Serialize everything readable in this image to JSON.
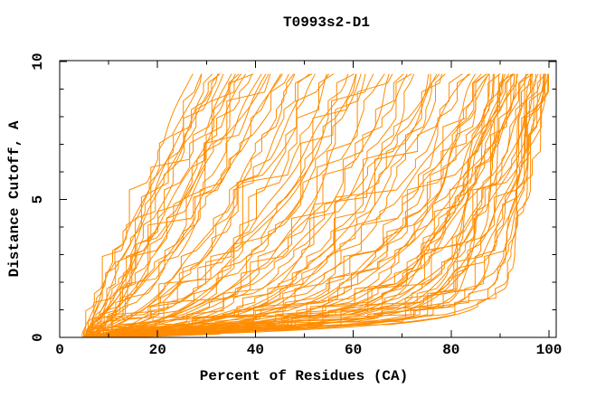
{
  "page": {
    "background": "#ffffff"
  },
  "chart_data": {
    "type": "line",
    "title": "T0993s2-D1",
    "xlabel": "Percent of Residues (CA)",
    "ylabel": "Distance Cutoff, A",
    "xlim": [
      0,
      101.5
    ],
    "ylim": [
      0,
      10
    ],
    "x_major_ticks": [
      0,
      20,
      40,
      60,
      80,
      100
    ],
    "x_minor_ticks": [
      10,
      30,
      50,
      70,
      90
    ],
    "y_major_ticks": [
      0,
      5,
      10
    ],
    "y_minor_ticks": [
      1,
      2,
      3,
      4,
      6,
      7,
      8,
      9
    ],
    "grid": false,
    "legend": "none",
    "frame": "box-with-mirrored-inward-ticks",
    "series_color": "#ff8c00",
    "axis_color": "#000000",
    "n_curves": 96,
    "curve_ymax": 9.55,
    "curve_params_format": [
      "percent_at_cutoff_0",
      "percent_at_top_cutoff",
      "shape_exponent",
      "seed"
    ],
    "curves": [
      [
        7.5,
        86.5,
        0.3,
        11
      ],
      [
        8.2,
        87.2,
        0.26,
        12
      ],
      [
        6.8,
        87.8,
        0.22,
        13
      ],
      [
        9.0,
        88.3,
        0.18,
        14
      ],
      [
        7.2,
        88.8,
        0.28,
        15
      ],
      [
        8.6,
        89.3,
        0.15,
        16
      ],
      [
        6.4,
        89.8,
        0.24,
        17
      ],
      [
        9.4,
        90.2,
        0.12,
        18
      ],
      [
        7.8,
        90.6,
        0.2,
        19
      ],
      [
        8.9,
        91.0,
        0.16,
        20
      ],
      [
        6.9,
        91.4,
        0.26,
        21
      ],
      [
        9.8,
        91.8,
        0.11,
        22
      ],
      [
        7.4,
        92.2,
        0.22,
        23
      ],
      [
        8.4,
        92.6,
        0.14,
        24
      ],
      [
        6.6,
        93.0,
        0.19,
        25
      ],
      [
        10.2,
        93.4,
        0.1,
        26
      ],
      [
        7.9,
        93.8,
        0.24,
        27
      ],
      [
        8.8,
        94.2,
        0.13,
        28
      ],
      [
        7.1,
        94.6,
        0.17,
        29
      ],
      [
        9.6,
        95.0,
        0.09,
        30
      ],
      [
        8.0,
        95.4,
        0.21,
        31
      ],
      [
        7.6,
        95.8,
        0.12,
        32
      ],
      [
        8.3,
        96.2,
        0.16,
        33
      ],
      [
        6.7,
        96.6,
        0.1,
        34
      ],
      [
        9.2,
        97.0,
        0.14,
        35
      ],
      [
        7.3,
        97.4,
        0.08,
        36
      ],
      [
        8.7,
        97.8,
        0.18,
        37
      ],
      [
        7.7,
        98.2,
        0.11,
        38
      ],
      [
        9.1,
        98.6,
        0.08,
        39
      ],
      [
        8.1,
        99.0,
        0.13,
        40
      ],
      [
        7.0,
        99.3,
        0.09,
        41
      ],
      [
        8.5,
        99.6,
        0.15,
        42
      ],
      [
        7.5,
        99.8,
        0.07,
        43
      ],
      [
        9.3,
        100.0,
        0.11,
        44
      ],
      [
        8.0,
        100.0,
        0.08,
        45
      ],
      [
        6.5,
        99.5,
        0.19,
        46
      ],
      [
        10.5,
        98.9,
        0.07,
        47
      ],
      [
        7.2,
        96.9,
        0.25,
        48
      ],
      [
        11.0,
        94.9,
        0.3,
        49
      ],
      [
        6.2,
        92.9,
        0.33,
        50
      ],
      [
        9.9,
        90.9,
        0.35,
        51
      ],
      [
        5.8,
        88.9,
        0.38,
        52
      ],
      [
        5.2,
        45.5,
        0.68,
        53
      ],
      [
        6.3,
        46.8,
        0.72,
        54
      ],
      [
        7.4,
        48.1,
        0.6,
        55
      ],
      [
        5.7,
        49.4,
        0.65,
        56
      ],
      [
        8.2,
        50.7,
        0.55,
        57
      ],
      [
        6.0,
        52.0,
        0.62,
        58
      ],
      [
        7.0,
        53.3,
        0.5,
        59
      ],
      [
        5.4,
        54.6,
        0.58,
        60
      ],
      [
        8.6,
        55.9,
        0.46,
        61
      ],
      [
        6.6,
        57.2,
        0.54,
        62
      ],
      [
        7.8,
        58.5,
        0.44,
        63
      ],
      [
        5.9,
        59.8,
        0.52,
        64
      ],
      [
        9.0,
        61.1,
        0.42,
        65
      ],
      [
        6.2,
        62.4,
        0.56,
        66
      ],
      [
        7.5,
        63.7,
        0.4,
        67
      ],
      [
        5.5,
        65.0,
        0.48,
        68
      ],
      [
        8.4,
        66.3,
        0.38,
        69
      ],
      [
        6.8,
        67.6,
        0.52,
        70
      ],
      [
        7.2,
        68.9,
        0.36,
        71
      ],
      [
        5.6,
        70.2,
        0.46,
        72
      ],
      [
        8.8,
        71.5,
        0.34,
        73
      ],
      [
        6.4,
        72.8,
        0.48,
        74
      ],
      [
        7.6,
        74.1,
        0.33,
        75
      ],
      [
        5.8,
        75.4,
        0.44,
        76
      ],
      [
        9.2,
        76.7,
        0.31,
        77
      ],
      [
        6.7,
        78.0,
        0.42,
        78
      ],
      [
        7.9,
        79.3,
        0.3,
        79
      ],
      [
        6.1,
        80.6,
        0.4,
        80
      ],
      [
        8.3,
        81.9,
        0.29,
        81
      ],
      [
        6.9,
        83.2,
        0.38,
        82
      ],
      [
        7.7,
        84.5,
        0.28,
        83
      ],
      [
        5.3,
        85.8,
        0.36,
        84
      ],
      [
        10.0,
        60.5,
        0.58,
        85
      ],
      [
        10.8,
        75.0,
        0.35,
        86
      ],
      [
        4.8,
        27.5,
        1.1,
        87
      ],
      [
        5.6,
        28.6,
        1.0,
        88
      ],
      [
        6.4,
        29.7,
        1.06,
        89
      ],
      [
        4.6,
        30.8,
        0.95,
        90
      ],
      [
        7.2,
        31.9,
        1.02,
        91
      ],
      [
        5.2,
        33.0,
        0.9,
        92
      ],
      [
        6.0,
        34.1,
        0.98,
        93
      ],
      [
        4.9,
        35.2,
        0.86,
        94
      ],
      [
        6.8,
        36.3,
        0.94,
        95
      ],
      [
        5.4,
        37.4,
        0.82,
        96
      ],
      [
        7.6,
        38.5,
        0.9,
        97
      ],
      [
        5.0,
        39.6,
        0.78,
        98
      ],
      [
        6.2,
        40.7,
        0.86,
        99
      ],
      [
        5.8,
        41.8,
        0.74,
        100
      ],
      [
        7.0,
        42.9,
        0.82,
        101
      ],
      [
        5.5,
        44.0,
        0.7,
        102
      ],
      [
        6.6,
        45.0,
        0.78,
        103
      ],
      [
        4.7,
        32.5,
        1.12,
        104
      ],
      [
        8.0,
        36.9,
        1.05,
        105
      ],
      [
        5.1,
        42.3,
        0.92,
        106
      ]
    ]
  }
}
